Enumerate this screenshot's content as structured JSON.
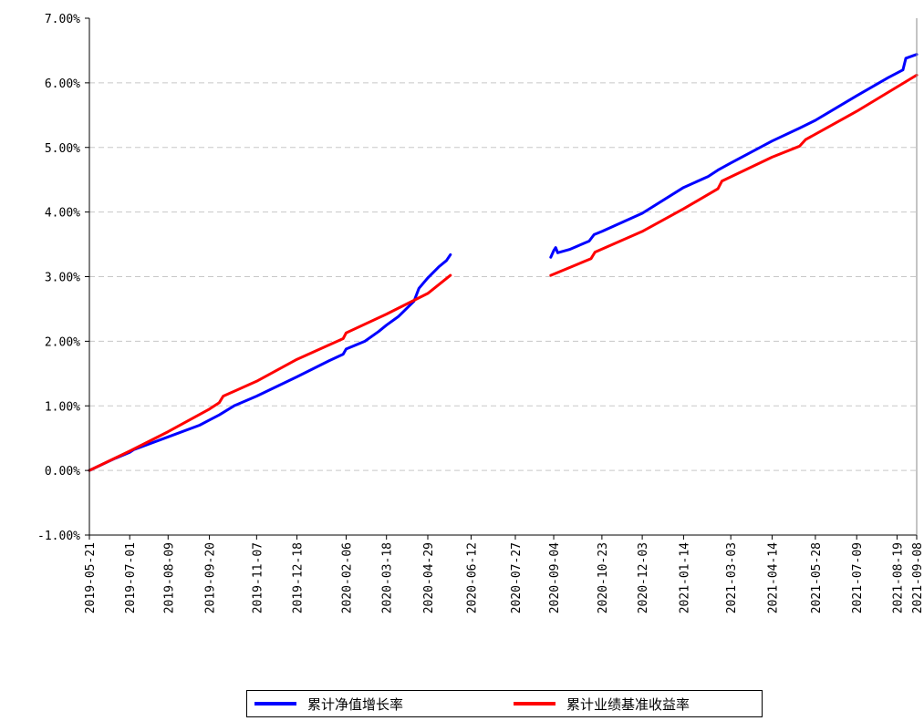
{
  "chart_data": {
    "type": "line",
    "title": "",
    "xlabel": "",
    "ylabel": "",
    "ylim": [
      -1.0,
      7.0
    ],
    "y_ticks": [
      "-1.00%",
      "0.00%",
      "1.00%",
      "2.00%",
      "3.00%",
      "4.00%",
      "5.00%",
      "6.00%",
      "7.00%"
    ],
    "y_tick_values": [
      -1,
      0,
      1,
      2,
      3,
      4,
      5,
      6,
      7
    ],
    "x_start": "2019-05-21",
    "x_end": "2021-09-08",
    "x_ticks": [
      "2019-05-21",
      "2019-07-01",
      "2019-08-09",
      "2019-09-20",
      "2019-11-07",
      "2019-12-18",
      "2020-02-06",
      "2020-03-18",
      "2020-04-29",
      "2020-06-12",
      "2020-07-27",
      "2020-09-04",
      "2020-10-23",
      "2020-12-03",
      "2021-01-14",
      "2021-03-03",
      "2021-04-14",
      "2021-05-28",
      "2021-07-09",
      "2021-08-19",
      "2021-09-08"
    ],
    "grid": "horizontal dashed",
    "legend_position": "bottom-center",
    "series": [
      {
        "name": "累计净值增长率",
        "color": "#0000ff",
        "segments": [
          [
            [
              "2019-05-21",
              0.0
            ],
            [
              "2019-06-15",
              0.18
            ],
            [
              "2019-07-01",
              0.28
            ],
            [
              "2019-07-05",
              0.32
            ],
            [
              "2019-08-09",
              0.52
            ],
            [
              "2019-09-10",
              0.7
            ],
            [
              "2019-09-20",
              0.78
            ],
            [
              "2019-09-30",
              0.86
            ],
            [
              "2019-10-15",
              1.0
            ],
            [
              "2019-11-07",
              1.15
            ],
            [
              "2019-12-18",
              1.45
            ],
            [
              "2020-01-20",
              1.7
            ],
            [
              "2020-02-03",
              1.8
            ],
            [
              "2020-02-06",
              1.88
            ],
            [
              "2020-02-25",
              2.0
            ],
            [
              "2020-03-10",
              2.15
            ],
            [
              "2020-03-18",
              2.25
            ],
            [
              "2020-03-30",
              2.38
            ],
            [
              "2020-04-15",
              2.62
            ],
            [
              "2020-04-20",
              2.82
            ],
            [
              "2020-04-29",
              2.98
            ],
            [
              "2020-05-10",
              3.15
            ],
            [
              "2020-05-18",
              3.25
            ],
            [
              "2020-05-22",
              3.34
            ]
          ],
          [
            [
              "2020-09-01",
              3.3
            ],
            [
              "2020-09-04",
              3.4
            ],
            [
              "2020-09-06",
              3.45
            ],
            [
              "2020-09-08",
              3.37
            ],
            [
              "2020-09-20",
              3.42
            ],
            [
              "2020-10-10",
              3.55
            ],
            [
              "2020-10-15",
              3.65
            ],
            [
              "2020-10-23",
              3.7
            ],
            [
              "2020-12-03",
              3.98
            ],
            [
              "2021-01-14",
              4.38
            ],
            [
              "2021-02-08",
              4.55
            ],
            [
              "2021-02-18",
              4.65
            ],
            [
              "2021-03-03",
              4.76
            ],
            [
              "2021-04-14",
              5.1
            ],
            [
              "2021-05-12",
              5.3
            ],
            [
              "2021-05-28",
              5.42
            ],
            [
              "2021-07-09",
              5.8
            ],
            [
              "2021-08-10",
              6.08
            ],
            [
              "2021-08-25",
              6.2
            ],
            [
              "2021-08-28",
              6.38
            ],
            [
              "2021-09-08",
              6.44
            ]
          ]
        ]
      },
      {
        "name": "累计业绩基准收益率",
        "color": "#ff0000",
        "segments": [
          [
            [
              "2019-05-21",
              0.0
            ],
            [
              "2019-07-01",
              0.3
            ],
            [
              "2019-08-09",
              0.6
            ],
            [
              "2019-09-20",
              0.95
            ],
            [
              "2019-09-30",
              1.05
            ],
            [
              "2019-10-04",
              1.15
            ],
            [
              "2019-11-07",
              1.38
            ],
            [
              "2019-12-18",
              1.72
            ],
            [
              "2020-02-03",
              2.04
            ],
            [
              "2020-02-06",
              2.13
            ],
            [
              "2020-03-18",
              2.42
            ],
            [
              "2020-04-29",
              2.74
            ],
            [
              "2020-05-22",
              3.02
            ]
          ],
          [
            [
              "2020-09-01",
              3.02
            ],
            [
              "2020-10-12",
              3.28
            ],
            [
              "2020-10-16",
              3.38
            ],
            [
              "2020-12-03",
              3.7
            ],
            [
              "2021-01-14",
              4.05
            ],
            [
              "2021-02-18",
              4.36
            ],
            [
              "2021-02-22",
              4.48
            ],
            [
              "2021-04-14",
              4.85
            ],
            [
              "2021-05-12",
              5.02
            ],
            [
              "2021-05-18",
              5.12
            ],
            [
              "2021-07-09",
              5.56
            ],
            [
              "2021-09-08",
              6.12
            ]
          ]
        ]
      }
    ]
  }
}
